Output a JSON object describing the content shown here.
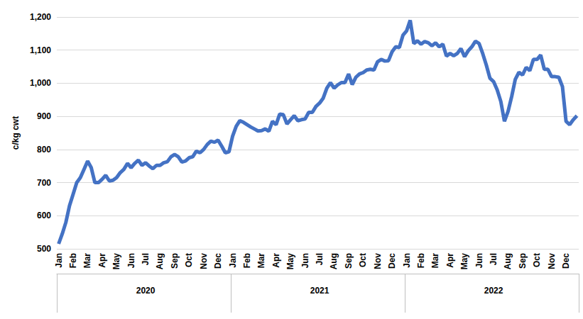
{
  "chart_data": {
    "type": "line",
    "y_label": "c/kg cwt",
    "color": "#4472c4",
    "grid": true,
    "ylim": [
      500,
      1200
    ],
    "yticks": [
      500,
      600,
      700,
      800,
      900,
      {
        "value": 1000,
        "label": "1,000"
      },
      {
        "value": 1100,
        "label": "1,100"
      },
      {
        "value": 1200,
        "label": "1,200"
      }
    ],
    "groups": [
      {
        "label": "2020",
        "count": 48
      },
      {
        "label": "2021",
        "count": 48
      },
      {
        "label": "2022",
        "count": 48
      }
    ],
    "categories": [
      "Jan",
      null,
      null,
      null,
      "Feb",
      null,
      null,
      null,
      "Mar",
      null,
      null,
      null,
      "Apr",
      null,
      null,
      null,
      "May",
      null,
      null,
      null,
      "Jun",
      null,
      null,
      null,
      "Jul",
      null,
      null,
      null,
      "Aug",
      null,
      null,
      null,
      "Sep",
      null,
      null,
      null,
      "Oct",
      null,
      null,
      null,
      "Nov",
      null,
      null,
      null,
      "Dec",
      null,
      null,
      null,
      "Jan",
      null,
      null,
      null,
      "Feb",
      null,
      null,
      null,
      "Mar",
      null,
      null,
      null,
      "Apr",
      null,
      null,
      null,
      "May",
      null,
      null,
      null,
      "Jun",
      null,
      null,
      null,
      "Jul",
      null,
      null,
      null,
      "Aug",
      null,
      null,
      null,
      "Sep",
      null,
      null,
      null,
      "Oct",
      null,
      null,
      null,
      "Nov",
      null,
      null,
      null,
      "Dec",
      null,
      null,
      null,
      "Jan",
      null,
      null,
      null,
      "Feb",
      null,
      null,
      null,
      "Mar",
      null,
      null,
      null,
      "Apr",
      null,
      null,
      null,
      "May",
      null,
      null,
      null,
      "Jun",
      null,
      null,
      null,
      "Jul",
      null,
      null,
      null,
      "Aug",
      null,
      null,
      null,
      "Sep",
      null,
      null,
      null,
      "Oct",
      null,
      null,
      null,
      "Nov",
      null,
      null,
      null,
      "Dec",
      null,
      null,
      null
    ],
    "values": [
      515,
      545,
      580,
      630,
      665,
      700,
      715,
      740,
      765,
      745,
      700,
      700,
      710,
      722,
      705,
      707,
      715,
      730,
      740,
      758,
      745,
      758,
      768,
      752,
      760,
      750,
      742,
      752,
      752,
      760,
      763,
      778,
      785,
      778,
      762,
      765,
      775,
      778,
      795,
      790,
      800,
      815,
      825,
      822,
      828,
      810,
      790,
      793,
      840,
      870,
      887,
      882,
      875,
      868,
      862,
      856,
      857,
      862,
      855,
      885,
      875,
      907,
      905,
      877,
      890,
      902,
      887,
      890,
      892,
      912,
      912,
      930,
      940,
      955,
      985,
      1002,
      985,
      995,
      1002,
      1002,
      1028,
      996,
      1018,
      1028,
      1032,
      1040,
      1042,
      1040,
      1065,
      1072,
      1067,
      1068,
      1095,
      1110,
      1108,
      1145,
      1158,
      1190,
      1120,
      1128,
      1118,
      1126,
      1122,
      1113,
      1122,
      1110,
      1118,
      1082,
      1090,
      1083,
      1090,
      1105,
      1080,
      1098,
      1110,
      1127,
      1120,
      1090,
      1055,
      1015,
      1005,
      980,
      945,
      885,
      915,
      960,
      1012,
      1033,
      1025,
      1048,
      1038,
      1072,
      1072,
      1085,
      1042,
      1042,
      1020,
      1020,
      1018,
      990,
      885,
      875,
      890,
      902
    ]
  }
}
